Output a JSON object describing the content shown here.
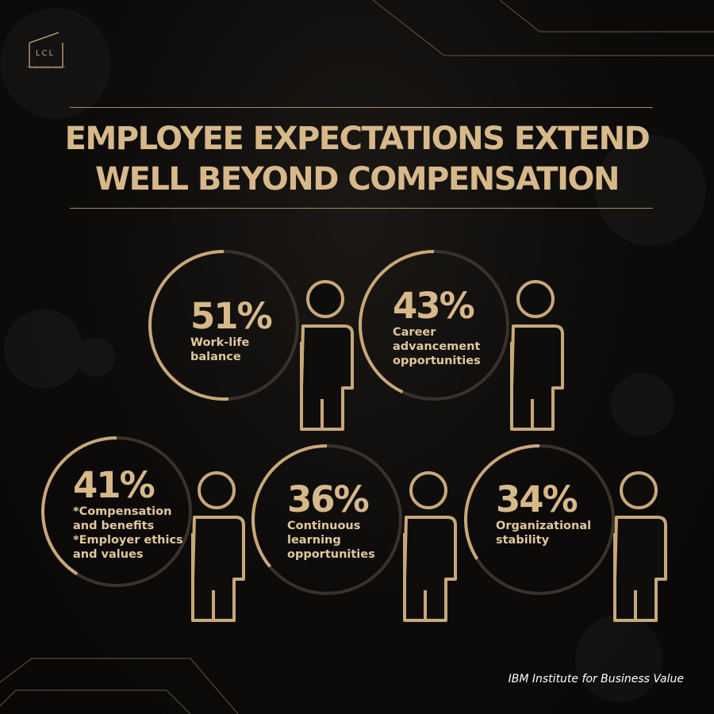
{
  "logo": {
    "mark": "LCL",
    "tagline": "LUXURY CREATE LEADERS"
  },
  "title": {
    "line1": "EMPLOYEE EXPECTATIONS EXTEND",
    "line2": "WELL BEYOND COMPENSATION"
  },
  "stats": [
    {
      "value": "51%",
      "label": "Work-life\nbalance",
      "percent": 51
    },
    {
      "value": "43%",
      "label": "Career\nadvancement\nopportunities",
      "percent": 43
    },
    {
      "value": "41%",
      "label": "*Compensation\nand benefits\n*Employer ethics\nand values",
      "percent": 41
    },
    {
      "value": "36%",
      "label": "Continuous\nlearning\nopportunities",
      "percent": 36
    },
    {
      "value": "34%",
      "label": "Organizational\nstability",
      "percent": 34
    }
  ],
  "source": "IBM Institute for Business Value",
  "colors": {
    "background": "#0c0b0a",
    "gold": "#c9a877",
    "ring_track": "#3a322a"
  },
  "icons": [
    "person-icon"
  ]
}
